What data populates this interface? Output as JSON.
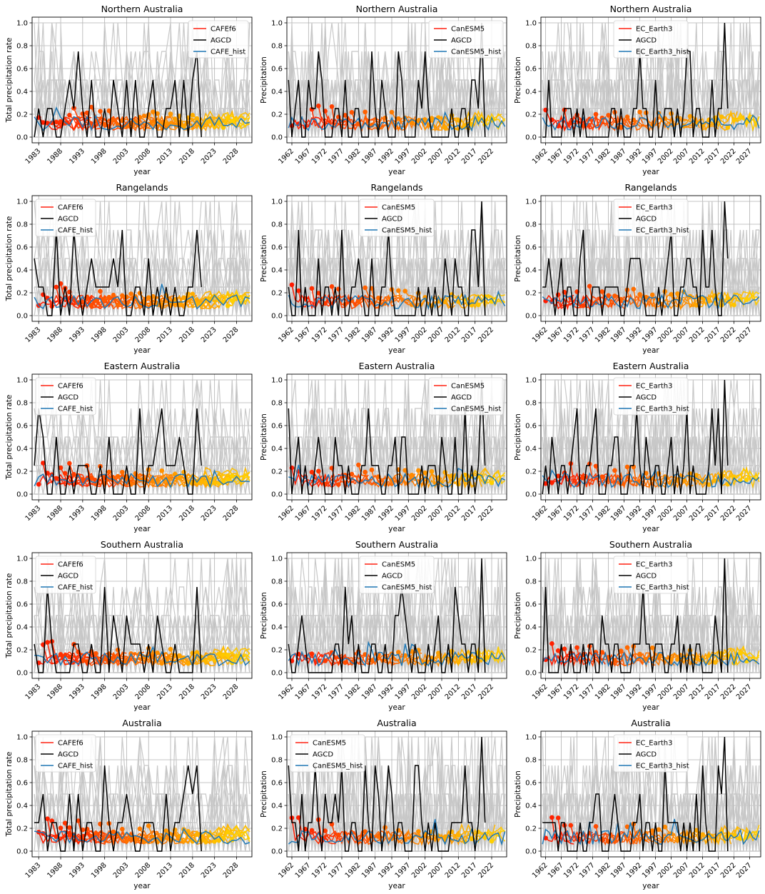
{
  "colors": {
    "ensemble": "#c8c8c8",
    "grid": "#b0b0b0",
    "agcd": "#000000",
    "hist": "#1f77b4",
    "legend_model": "#ff2010",
    "init_early": "#ff1a00",
    "init_mid": "#ff7a00",
    "init_late": "#ffd000"
  },
  "chart_data": [
    {
      "type": "line",
      "title": "Northern Australia",
      "xlabel": "year",
      "ylabel": "Total precipitation rate",
      "xlim": [
        1981.5,
        2031.5
      ],
      "ylim": [
        -0.05,
        1.05
      ],
      "xticks": [
        "1983",
        "1988",
        "1993",
        "1998",
        "2003",
        "2008",
        "2013",
        "2018",
        "2023",
        "2028"
      ],
      "yticks": [
        "0.0",
        "0.2",
        "0.4",
        "0.6",
        "0.8",
        "1.0"
      ],
      "legend": [
        "CAFEf6",
        "AGCD",
        "CAFE_hist"
      ],
      "legend_loc": "upper right",
      "grid": true
    },
    {
      "type": "line",
      "title": "Northern Australia",
      "xlabel": "year",
      "ylabel": "Precipitation",
      "xlim": [
        1960.5,
        2026.5
      ],
      "ylim": [
        -0.05,
        1.05
      ],
      "xticks": [
        "1962",
        "1967",
        "1972",
        "1977",
        "1982",
        "1987",
        "1992",
        "1997",
        "2002",
        "2007",
        "2012",
        "2017",
        "2022"
      ],
      "yticks": [
        "0.0",
        "0.2",
        "0.4",
        "0.6",
        "0.8",
        "1.0"
      ],
      "legend": [
        "CanESM5",
        "AGCD",
        "CanESM5_hist"
      ],
      "legend_loc": "upper right",
      "grid": true
    },
    {
      "type": "line",
      "title": "Northern Australia",
      "xlabel": "year",
      "ylabel": "Precipitation",
      "xlim": [
        1960.5,
        2030.5
      ],
      "ylim": [
        -0.05,
        1.05
      ],
      "xticks": [
        "1962",
        "1967",
        "1972",
        "1977",
        "1982",
        "1987",
        "1992",
        "1997",
        "2002",
        "2007",
        "2012",
        "2017",
        "2022",
        "2027"
      ],
      "yticks": [
        "0.0",
        "0.2",
        "0.4",
        "0.6",
        "0.8",
        "1.0"
      ],
      "legend": [
        "EC_Earth3",
        "AGCD",
        "EC_Earth3_hist"
      ],
      "legend_loc": "upper center",
      "grid": true
    },
    {
      "type": "line",
      "title": "Rangelands",
      "xlabel": "year",
      "ylabel": "Total precipitation rate",
      "xlim": [
        1981.5,
        2031.5
      ],
      "ylim": [
        -0.05,
        1.05
      ],
      "xticks": [
        "1983",
        "1988",
        "1993",
        "1998",
        "2003",
        "2008",
        "2013",
        "2018",
        "2023",
        "2028"
      ],
      "yticks": [
        "0.0",
        "0.2",
        "0.4",
        "0.6",
        "0.8",
        "1.0"
      ],
      "legend": [
        "CAFEf6",
        "AGCD",
        "CAFE_hist"
      ],
      "legend_loc": "upper left",
      "grid": true
    },
    {
      "type": "line",
      "title": "Rangelands",
      "xlabel": "year",
      "ylabel": "Precipitation",
      "xlim": [
        1960.5,
        2026.5
      ],
      "ylim": [
        -0.05,
        1.05
      ],
      "xticks": [
        "1962",
        "1967",
        "1972",
        "1977",
        "1982",
        "1987",
        "1992",
        "1997",
        "2002",
        "2007",
        "2012",
        "2017",
        "2022"
      ],
      "yticks": [
        "0.0",
        "0.2",
        "0.4",
        "0.6",
        "0.8",
        "1.0"
      ],
      "legend": [
        "CanESM5",
        "AGCD",
        "CanESM5_hist"
      ],
      "legend_loc": "upper center",
      "grid": true
    },
    {
      "type": "line",
      "title": "Rangelands",
      "xlabel": "year",
      "ylabel": "Precipitation",
      "xlim": [
        1960.5,
        2030.5
      ],
      "ylim": [
        -0.05,
        1.05
      ],
      "xticks": [
        "1962",
        "1967",
        "1972",
        "1977",
        "1982",
        "1987",
        "1992",
        "1997",
        "2002",
        "2007",
        "2012",
        "2017",
        "2022",
        "2027"
      ],
      "yticks": [
        "0.0",
        "0.2",
        "0.4",
        "0.6",
        "0.8",
        "1.0"
      ],
      "legend": [
        "EC_Earth3",
        "AGCD",
        "EC_Earth3_hist"
      ],
      "legend_loc": "upper center",
      "grid": true
    },
    {
      "type": "line",
      "title": "Eastern Australia",
      "xlabel": "year",
      "ylabel": "Total precipitation rate",
      "xlim": [
        1981.5,
        2031.5
      ],
      "ylim": [
        -0.05,
        1.05
      ],
      "xticks": [
        "1983",
        "1988",
        "1993",
        "1998",
        "2003",
        "2008",
        "2013",
        "2018",
        "2023",
        "2028"
      ],
      "yticks": [
        "0.0",
        "0.2",
        "0.4",
        "0.6",
        "0.8",
        "1.0"
      ],
      "legend": [
        "CAFEf6",
        "AGCD",
        "CAFE_hist"
      ],
      "legend_loc": "upper left",
      "grid": true
    },
    {
      "type": "line",
      "title": "Eastern Australia",
      "xlabel": "year",
      "ylabel": "Precipitation",
      "xlim": [
        1960.5,
        2026.5
      ],
      "ylim": [
        -0.05,
        1.05
      ],
      "xticks": [
        "1962",
        "1967",
        "1972",
        "1977",
        "1982",
        "1987",
        "1992",
        "1997",
        "2002",
        "2007",
        "2012",
        "2017",
        "2022"
      ],
      "yticks": [
        "0.0",
        "0.2",
        "0.4",
        "0.6",
        "0.8",
        "1.0"
      ],
      "legend": [
        "CanESM5",
        "AGCD",
        "CanESM5_hist"
      ],
      "legend_loc": "upper right",
      "grid": true
    },
    {
      "type": "line",
      "title": "Eastern Australia",
      "xlabel": "year",
      "ylabel": "Precipitation",
      "xlim": [
        1960.5,
        2030.5
      ],
      "ylim": [
        -0.05,
        1.05
      ],
      "xticks": [
        "1962",
        "1967",
        "1972",
        "1977",
        "1982",
        "1987",
        "1992",
        "1997",
        "2002",
        "2007",
        "2012",
        "2017",
        "2022",
        "2027"
      ],
      "yticks": [
        "0.0",
        "0.2",
        "0.4",
        "0.6",
        "0.8",
        "1.0"
      ],
      "legend": [
        "EC_Earth3",
        "AGCD",
        "EC_Earth3_hist"
      ],
      "legend_loc": "upper center",
      "grid": true
    },
    {
      "type": "line",
      "title": "Southern Australia",
      "xlabel": "year",
      "ylabel": "Total precipitation rate",
      "xlim": [
        1981.5,
        2031.5
      ],
      "ylim": [
        -0.05,
        1.05
      ],
      "xticks": [
        "1983",
        "1988",
        "1993",
        "1998",
        "2003",
        "2008",
        "2013",
        "2018",
        "2023",
        "2028"
      ],
      "yticks": [
        "0.0",
        "0.2",
        "0.4",
        "0.6",
        "0.8",
        "1.0"
      ],
      "legend": [
        "CAFEf6",
        "AGCD",
        "CAFE_hist"
      ],
      "legend_loc": "upper left",
      "grid": true
    },
    {
      "type": "line",
      "title": "Southern Australia",
      "xlabel": "year",
      "ylabel": "Precipitation",
      "xlim": [
        1960.5,
        2026.5
      ],
      "ylim": [
        -0.05,
        1.05
      ],
      "xticks": [
        "1962",
        "1967",
        "1972",
        "1977",
        "1982",
        "1987",
        "1992",
        "1997",
        "2002",
        "2007",
        "2012",
        "2017",
        "2022"
      ],
      "yticks": [
        "0.0",
        "0.2",
        "0.4",
        "0.6",
        "0.8",
        "1.0"
      ],
      "legend": [
        "CanESM5",
        "AGCD",
        "CanESM5_hist"
      ],
      "legend_loc": "upper center",
      "grid": true
    },
    {
      "type": "line",
      "title": "Southern Australia",
      "xlabel": "year",
      "ylabel": "Precipitation",
      "xlim": [
        1960.5,
        2030.5
      ],
      "ylim": [
        -0.05,
        1.05
      ],
      "xticks": [
        "1962",
        "1967",
        "1972",
        "1977",
        "1982",
        "1987",
        "1992",
        "1997",
        "2002",
        "2007",
        "2012",
        "2017",
        "2022",
        "2027"
      ],
      "yticks": [
        "0.0",
        "0.2",
        "0.4",
        "0.6",
        "0.8",
        "1.0"
      ],
      "legend": [
        "EC_Earth3",
        "AGCD",
        "EC_Earth3_hist"
      ],
      "legend_loc": "upper center",
      "grid": true
    },
    {
      "type": "line",
      "title": "Australia",
      "xlabel": "year",
      "ylabel": "Total precipitation rate",
      "xlim": [
        1981.5,
        2031.5
      ],
      "ylim": [
        -0.05,
        1.05
      ],
      "xticks": [
        "1983",
        "1988",
        "1993",
        "1998",
        "2003",
        "2008",
        "2013",
        "2018",
        "2023",
        "2028"
      ],
      "yticks": [
        "0.0",
        "0.2",
        "0.4",
        "0.6",
        "0.8",
        "1.0"
      ],
      "legend": [
        "CAFEf6",
        "AGCD",
        "CAFE_hist"
      ],
      "legend_loc": "upper left",
      "grid": true
    },
    {
      "type": "line",
      "title": "Australia",
      "xlabel": "year",
      "ylabel": "Precipitation",
      "xlim": [
        1960.5,
        2026.5
      ],
      "ylim": [
        -0.05,
        1.05
      ],
      "xticks": [
        "1962",
        "1967",
        "1972",
        "1977",
        "1982",
        "1987",
        "1992",
        "1997",
        "2002",
        "2007",
        "2012",
        "2017",
        "2022"
      ],
      "yticks": [
        "0.0",
        "0.2",
        "0.4",
        "0.6",
        "0.8",
        "1.0"
      ],
      "legend": [
        "CanESM5",
        "AGCD",
        "CanESM5_hist"
      ],
      "legend_loc": "upper left",
      "grid": true
    },
    {
      "type": "line",
      "title": "Australia",
      "xlabel": "year",
      "ylabel": "Precipitation",
      "xlim": [
        1960.5,
        2030.5
      ],
      "ylim": [
        -0.05,
        1.05
      ],
      "xticks": [
        "1962",
        "1967",
        "1972",
        "1977",
        "1982",
        "1987",
        "1992",
        "1997",
        "2002",
        "2007",
        "2012",
        "2017",
        "2022",
        "2027"
      ],
      "yticks": [
        "0.0",
        "0.2",
        "0.4",
        "0.6",
        "0.8",
        "1.0"
      ],
      "legend": [
        "EC_Earth3",
        "AGCD",
        "EC_Earth3_hist"
      ],
      "legend_loc": "upper center",
      "grid": true
    }
  ]
}
